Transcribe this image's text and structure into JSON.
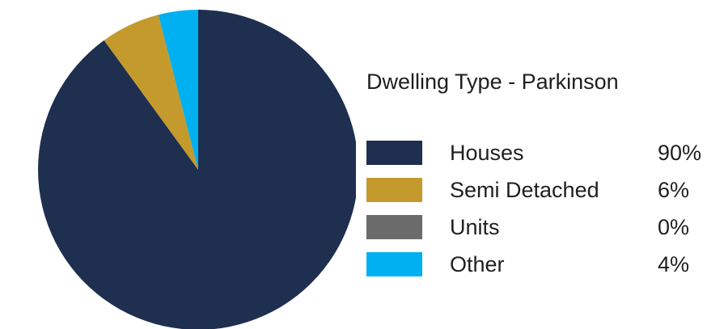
{
  "chart_data": {
    "type": "pie",
    "title": "Dwelling Type - Parkinson",
    "start_angle_deg": 0,
    "direction": "clockwise",
    "slices": [
      {
        "label": "Houses",
        "value": 90,
        "display": "90%",
        "color": "#1f2f4f"
      },
      {
        "label": "Semi Detached",
        "value": 6,
        "display": "6%",
        "color": "#c49a2c"
      },
      {
        "label": "Units",
        "value": 0,
        "display": "0%",
        "color": "#6b6b6b"
      },
      {
        "label": "Other",
        "value": 4,
        "display": "4%",
        "color": "#00b0f0"
      }
    ],
    "legend_placement": "right"
  }
}
